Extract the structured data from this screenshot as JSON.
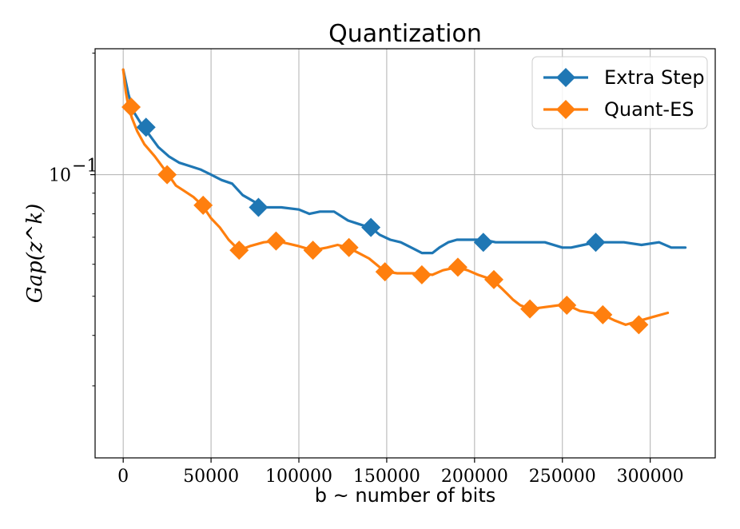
{
  "chart_data": {
    "type": "line",
    "title": "Quantization",
    "xlabel": "b ~ number of bits",
    "ylabel": "Gap(z^k)",
    "yscale": "log",
    "xlim": [
      -16000,
      337000
    ],
    "ylim": [
      0.0199,
      0.205
    ],
    "xticks": [
      0,
      50000,
      100000,
      150000,
      200000,
      250000,
      300000
    ],
    "xtick_labels": [
      "0",
      "50000",
      "100000",
      "150000",
      "200000",
      "250000",
      "300000"
    ],
    "ytick_major": [
      0.1
    ],
    "ytick_major_label": "10",
    "ytick_major_exp": "−1",
    "ytick_minor": [
      0.03,
      0.04,
      0.05,
      0.06,
      0.07,
      0.08,
      0.09,
      0.2
    ],
    "grid": true,
    "legend_position": "top-right",
    "series": [
      {
        "name": "Extra Step",
        "color": "#1f77b4",
        "x": [
          0,
          3000,
          6000,
          10000,
          14000,
          20000,
          26000,
          32000,
          38000,
          44000,
          50000,
          56000,
          62000,
          68000,
          72000,
          76000,
          80000,
          90000,
          100000,
          106000,
          112000,
          120000,
          128000,
          132000,
          136000,
          141000,
          146000,
          152000,
          158000,
          164000,
          170000,
          176000,
          180000,
          185000,
          190000,
          195000,
          200000,
          205000,
          212000,
          220000,
          230000,
          240000,
          250000,
          255000,
          262000,
          269000,
          276000,
          285000,
          295000,
          305000,
          312000,
          316000,
          320000
        ],
        "y": [
          0.182,
          0.158,
          0.143,
          0.134,
          0.127,
          0.117,
          0.111,
          0.107,
          0.105,
          0.103,
          0.1,
          0.097,
          0.095,
          0.089,
          0.087,
          0.085,
          0.083,
          0.083,
          0.082,
          0.08,
          0.081,
          0.081,
          0.077,
          0.076,
          0.075,
          0.074,
          0.071,
          0.069,
          0.068,
          0.066,
          0.064,
          0.064,
          0.066,
          0.068,
          0.069,
          0.069,
          0.069,
          0.069,
          0.068,
          0.068,
          0.068,
          0.068,
          0.066,
          0.066,
          0.067,
          0.068,
          0.068,
          0.068,
          0.067,
          0.068,
          0.066,
          0.066,
          0.066
        ],
        "markers_x": [
          13000,
          77000,
          141000,
          205000,
          269000
        ],
        "markers_y": [
          0.131,
          0.083,
          0.074,
          0.068,
          0.068
        ]
      },
      {
        "name": "Quant-ES",
        "color": "#ff7f0e",
        "x": [
          0,
          1500,
          3000,
          5000,
          8000,
          12000,
          18000,
          25000,
          30000,
          35000,
          40000,
          45000,
          50000,
          55000,
          60000,
          66000,
          72000,
          80000,
          87000,
          94000,
          100000,
          108000,
          116000,
          122000,
          128000,
          134000,
          140000,
          146000,
          150000,
          156000,
          162000,
          170000,
          176000,
          182000,
          190000,
          196000,
          202000,
          210000,
          216000,
          222000,
          226000,
          232000,
          240000,
          248000,
          253000,
          260000,
          267000,
          273000,
          280000,
          286000,
          294000,
          302000,
          310000
        ],
        "y": [
          0.182,
          0.16,
          0.147,
          0.138,
          0.128,
          0.119,
          0.111,
          0.101,
          0.094,
          0.091,
          0.088,
          0.084,
          0.078,
          0.074,
          0.069,
          0.065,
          0.0665,
          0.068,
          0.0685,
          0.0675,
          0.0665,
          0.065,
          0.066,
          0.067,
          0.066,
          0.064,
          0.062,
          0.059,
          0.0575,
          0.057,
          0.057,
          0.057,
          0.0565,
          0.058,
          0.059,
          0.058,
          0.0565,
          0.055,
          0.052,
          0.049,
          0.0475,
          0.0465,
          0.047,
          0.0475,
          0.0475,
          0.046,
          0.0455,
          0.045,
          0.0435,
          0.0425,
          0.0435,
          0.0445,
          0.0455
        ],
        "markers_x": [
          4500,
          25000,
          45500,
          66000,
          87000,
          108000,
          128500,
          149000,
          170000,
          190500,
          211000,
          231500,
          252500,
          273000,
          293500
        ],
        "markers_y": [
          0.147,
          0.1,
          0.084,
          0.065,
          0.0685,
          0.065,
          0.066,
          0.0575,
          0.0565,
          0.059,
          0.055,
          0.0465,
          0.0475,
          0.045,
          0.0425
        ]
      }
    ]
  }
}
